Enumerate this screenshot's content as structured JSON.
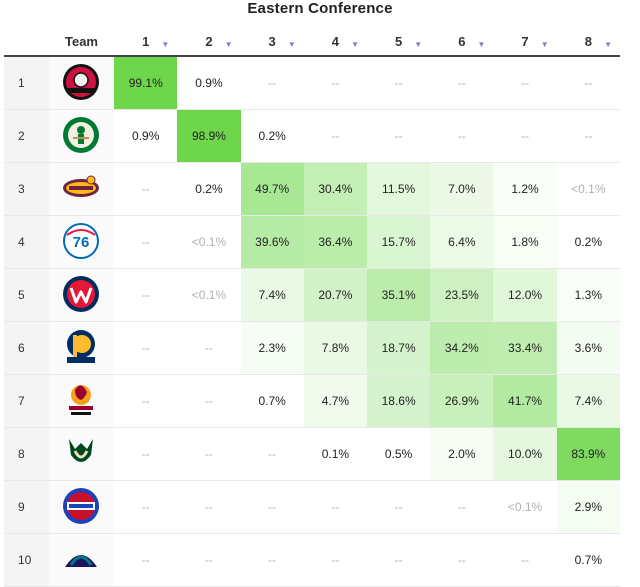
{
  "title": "Eastern Conference",
  "columns": {
    "team": "Team",
    "seeds": [
      "1",
      "2",
      "3",
      "4",
      "5",
      "6",
      "7",
      "8"
    ]
  },
  "icons": {
    "sort": "sort-arrow-icon",
    "teams": [
      "raptors-logo-icon",
      "celtics-logo-icon",
      "cavaliers-logo-icon",
      "76ers-logo-icon",
      "wizards-logo-icon",
      "pacers-logo-icon",
      "heat-logo-icon",
      "bucks-logo-icon",
      "pistons-logo-icon",
      "hornets-logo-icon"
    ]
  },
  "colors": {
    "heat_max": "#6cd64a",
    "heat_min": "#ffffff",
    "header_rule": "#444444"
  },
  "chart_data": {
    "type": "table",
    "title": "Eastern Conference",
    "columns": [
      "1",
      "2",
      "3",
      "4",
      "5",
      "6",
      "7",
      "8"
    ],
    "rows": [
      {
        "seed": "1",
        "values": [
          "99.1%",
          "0.9%",
          "--",
          "--",
          "--",
          "--",
          "--",
          "--"
        ]
      },
      {
        "seed": "2",
        "values": [
          "0.9%",
          "98.9%",
          "0.2%",
          "--",
          "--",
          "--",
          "--",
          "--"
        ]
      },
      {
        "seed": "3",
        "values": [
          "--",
          "0.2%",
          "49.7%",
          "30.4%",
          "11.5%",
          "7.0%",
          "1.2%",
          "<0.1%"
        ]
      },
      {
        "seed": "4",
        "values": [
          "--",
          "<0.1%",
          "39.6%",
          "36.4%",
          "15.7%",
          "6.4%",
          "1.8%",
          "0.2%"
        ]
      },
      {
        "seed": "5",
        "values": [
          "--",
          "<0.1%",
          "7.4%",
          "20.7%",
          "35.1%",
          "23.5%",
          "12.0%",
          "1.3%"
        ]
      },
      {
        "seed": "6",
        "values": [
          "--",
          "--",
          "2.3%",
          "7.8%",
          "18.7%",
          "34.2%",
          "33.4%",
          "3.6%"
        ]
      },
      {
        "seed": "7",
        "values": [
          "--",
          "--",
          "0.7%",
          "4.7%",
          "18.6%",
          "26.9%",
          "41.7%",
          "7.4%"
        ]
      },
      {
        "seed": "8",
        "values": [
          "--",
          "--",
          "--",
          "0.1%",
          "0.5%",
          "2.0%",
          "10.0%",
          "83.9%"
        ]
      },
      {
        "seed": "9",
        "values": [
          "--",
          "--",
          "--",
          "--",
          "--",
          "--",
          "<0.1%",
          "2.9%"
        ]
      },
      {
        "seed": "10",
        "values": [
          "--",
          "--",
          "--",
          "--",
          "--",
          "--",
          "--",
          "0.7%"
        ]
      }
    ]
  }
}
